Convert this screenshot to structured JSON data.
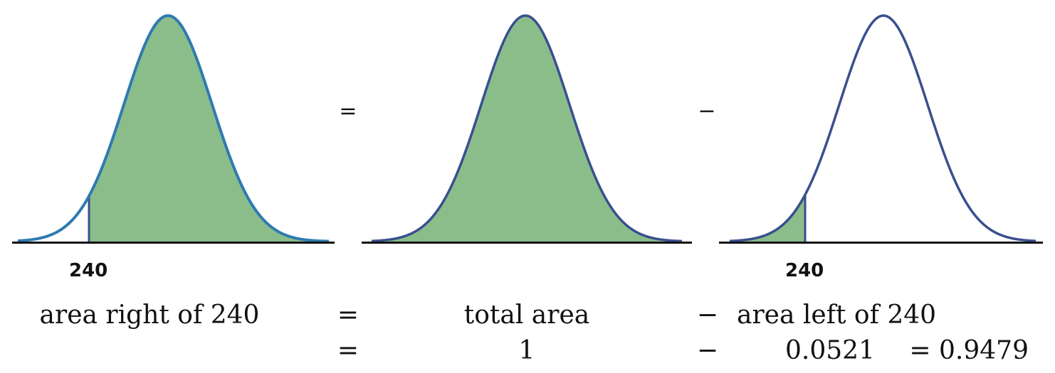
{
  "colors": {
    "fill": "#8bbd8b",
    "curve": "#3a4f8e",
    "curve_first": "#2e7bb0",
    "axis": "#111111",
    "text": "#111111"
  },
  "chart_data": {
    "type": "area",
    "distribution": "normal",
    "panels": [
      {
        "name": "area-right",
        "shade": "right",
        "cutoff_label": "240"
      },
      {
        "name": "total-area",
        "shade": "all"
      },
      {
        "name": "area-left",
        "shade": "left",
        "cutoff_label": "240"
      }
    ],
    "operators": [
      "=",
      "−"
    ]
  },
  "equation": {
    "row1": {
      "term1": "area right of 240",
      "eq": "=",
      "term2": "total area",
      "minus": "−",
      "term3": "area left of 240"
    },
    "row2": {
      "eq": "=",
      "term2": "1",
      "minus": "−",
      "term3": "0.0521",
      "result": "= 0.9479"
    }
  }
}
